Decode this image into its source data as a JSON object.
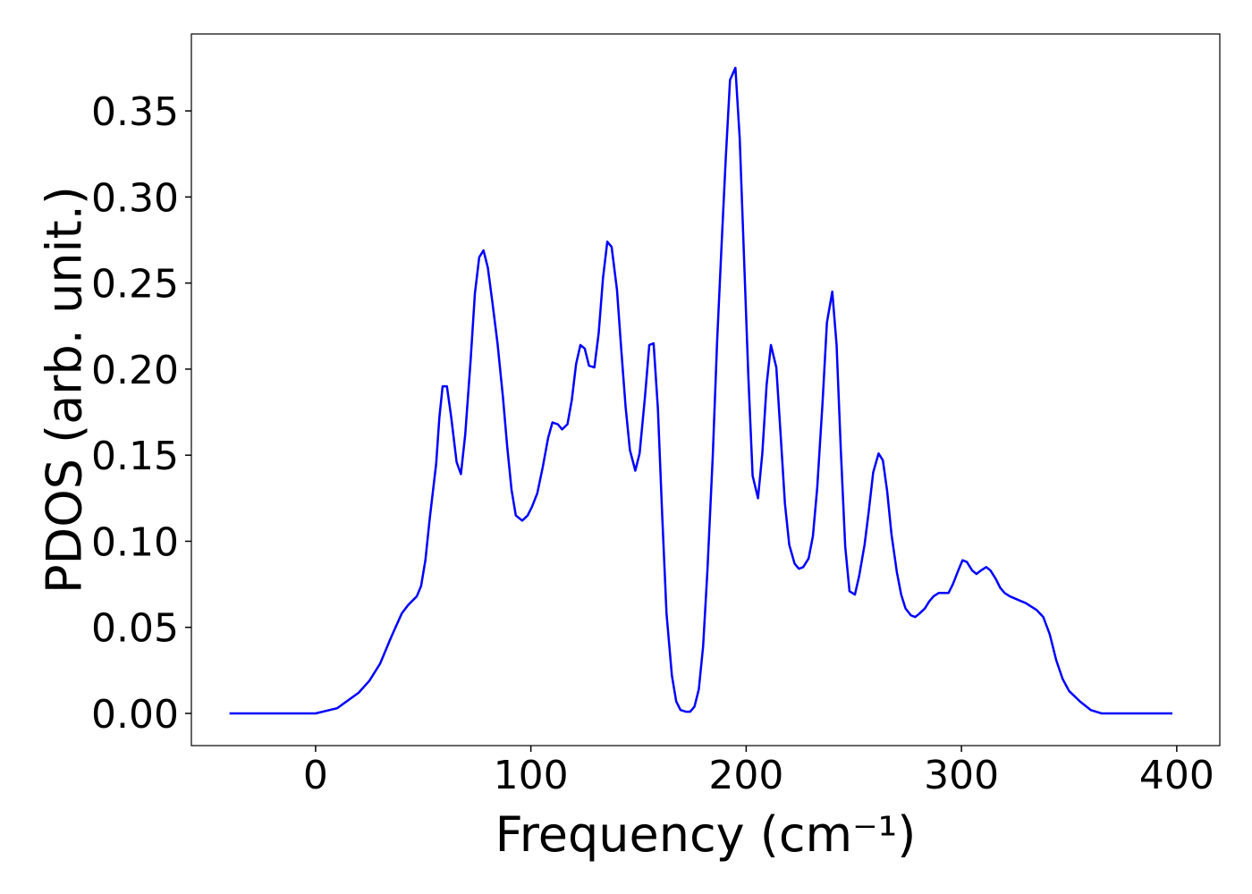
{
  "chart_data": {
    "type": "line",
    "x_label": "Frequency (cm⁻¹)",
    "y_label": "PDOS (arb. unit.)",
    "xlim": [
      -57.7,
      420
    ],
    "ylim": [
      -0.0187,
      0.3947
    ],
    "xticks": [
      0,
      100,
      200,
      300,
      400
    ],
    "yticks": [
      {
        "value": 0,
        "label": "0.00"
      },
      {
        "value": 0.05,
        "label": "0.05"
      },
      {
        "value": 0.1,
        "label": "0.10"
      },
      {
        "value": 0.15,
        "label": "0.15"
      },
      {
        "value": 0.2,
        "label": "0.20"
      },
      {
        "value": 0.25,
        "label": "0.25"
      },
      {
        "value": 0.3,
        "label": "0.30"
      },
      {
        "value": 0.35,
        "label": "0.35"
      }
    ],
    "grid": false,
    "x": [
      -40,
      -20,
      0,
      10,
      20,
      25,
      30,
      35,
      40,
      43,
      47,
      49,
      51,
      53,
      56,
      57.5,
      59,
      61,
      63,
      65.5,
      67.5,
      69.5,
      72,
      74,
      76,
      78,
      80,
      82,
      84.5,
      87,
      89,
      91,
      93,
      96,
      98.5,
      100.5,
      103,
      105.5,
      108,
      110,
      112.5,
      114.5,
      117,
      119,
      121,
      123,
      125,
      127,
      129.5,
      131.5,
      133.5,
      135.5,
      137.5,
      140,
      142,
      144,
      146,
      148.5,
      150.5,
      153,
      155,
      157,
      159,
      161,
      163,
      165.5,
      167.5,
      169.5,
      172,
      174,
      176,
      178,
      180,
      182,
      184.5,
      186.5,
      188.5,
      190.5,
      192.5,
      195,
      197,
      199,
      201,
      203,
      205.5,
      207.5,
      209.5,
      211.5,
      214,
      216,
      218,
      220,
      222.5,
      224.5,
      226.5,
      229,
      231,
      233,
      235.5,
      237.5,
      240,
      242,
      244,
      246,
      248,
      250.5,
      252.5,
      255,
      257,
      259,
      261.5,
      263.5,
      265.5,
      267.5,
      270,
      272,
      274,
      276.5,
      278.5,
      280.5,
      283,
      285,
      287,
      289.5,
      292,
      294,
      296,
      298.5,
      300.5,
      302.5,
      305,
      307,
      309,
      311.5,
      313.5,
      316,
      318,
      320,
      322.5,
      330,
      335,
      338,
      341,
      344,
      347,
      350,
      355,
      360,
      365,
      380,
      398
    ],
    "series": [
      {
        "name": "PDOS",
        "color": "#0000ff",
        "values": [
          0,
          0,
          0,
          0.003,
          0.012,
          0.019,
          0.029,
          0.044,
          0.058,
          0.063,
          0.068,
          0.074,
          0.089,
          0.113,
          0.145,
          0.172,
          0.19,
          0.19,
          0.172,
          0.146,
          0.139,
          0.162,
          0.205,
          0.244,
          0.265,
          0.269,
          0.259,
          0.24,
          0.215,
          0.184,
          0.155,
          0.13,
          0.115,
          0.112,
          0.115,
          0.12,
          0.128,
          0.143,
          0.16,
          0.169,
          0.168,
          0.165,
          0.168,
          0.182,
          0.203,
          0.214,
          0.212,
          0.202,
          0.201,
          0.221,
          0.253,
          0.274,
          0.271,
          0.246,
          0.211,
          0.178,
          0.153,
          0.141,
          0.151,
          0.184,
          0.214,
          0.215,
          0.177,
          0.115,
          0.058,
          0.022,
          0.007,
          0.002,
          0.001,
          0.001,
          0.004,
          0.014,
          0.039,
          0.083,
          0.15,
          0.216,
          0.27,
          0.322,
          0.368,
          0.375,
          0.334,
          0.265,
          0.196,
          0.138,
          0.125,
          0.151,
          0.191,
          0.214,
          0.201,
          0.162,
          0.122,
          0.098,
          0.087,
          0.084,
          0.085,
          0.09,
          0.103,
          0.131,
          0.181,
          0.227,
          0.245,
          0.214,
          0.152,
          0.097,
          0.071,
          0.069,
          0.08,
          0.098,
          0.118,
          0.14,
          0.151,
          0.147,
          0.129,
          0.104,
          0.082,
          0.069,
          0.061,
          0.057,
          0.056,
          0.058,
          0.061,
          0.065,
          0.068,
          0.07,
          0.07,
          0.07,
          0.075,
          0.083,
          0.089,
          0.088,
          0.083,
          0.081,
          0.083,
          0.085,
          0.083,
          0.078,
          0.073,
          0.07,
          0.068,
          0.064,
          0.06,
          0.056,
          0.046,
          0.031,
          0.02,
          0.013,
          0.007,
          0.002,
          0,
          0,
          0
        ]
      }
    ]
  }
}
